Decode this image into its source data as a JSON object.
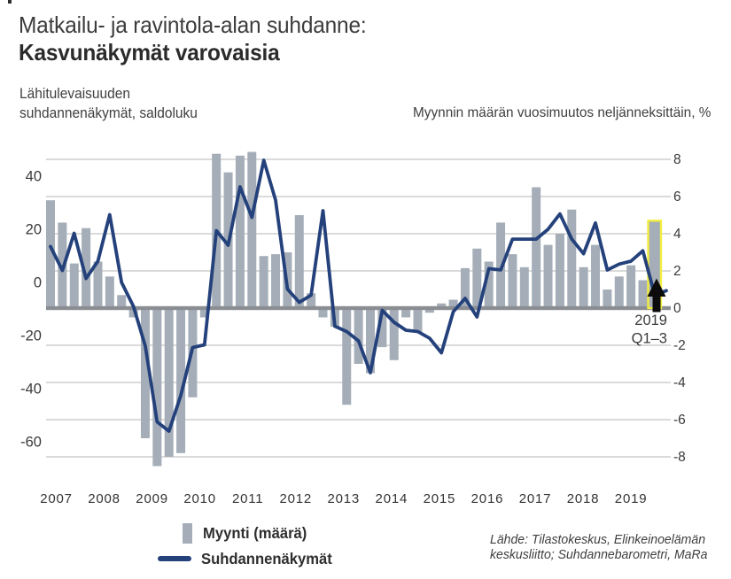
{
  "header": {
    "title_line1": "Matkailu- ja ravintola-alan suhdanne:",
    "title_line2": "Kasvunäkymät varovaisia"
  },
  "axis_notes": {
    "left_line1": "Lähitulevaisuuden",
    "left_line2": "suhdannenäkymät, saldoluku",
    "right": "Myynnin määrän vuosimuutos neljänneksittäin, %"
  },
  "chart_data": {
    "type": "bar+line",
    "x_start": "2007-Q1",
    "x_frequency": "quarterly",
    "year_labels": [
      "2007",
      "2008",
      "2009",
      "2010",
      "2011",
      "2012",
      "2013",
      "2014",
      "2015",
      "2016",
      "2017",
      "2018",
      "2019"
    ],
    "bar_series": {
      "name": "Myynti (määrä)",
      "axis": "right",
      "unit": "%",
      "values": [
        5.8,
        4.6,
        2.4,
        4.3,
        2.5,
        1.7,
        0.7,
        -0.5,
        -7.0,
        -8.5,
        -8.0,
        -7.8,
        -4.8,
        -0.5,
        8.3,
        7.3,
        8.2,
        8.4,
        2.8,
        2.9,
        3.0,
        5.0,
        0.8,
        -0.5,
        -1.0,
        -5.2,
        -3.0,
        -3.5,
        -2.1,
        -2.8,
        -0.5,
        -1.3,
        -0.25,
        0.25,
        0.45,
        2.15,
        3.2,
        2.5,
        4.6,
        2.9,
        2.2,
        6.5,
        3.4,
        4.0,
        5.3,
        2.2,
        3.4,
        1.0,
        1.7,
        2.3,
        1.5
      ]
    },
    "highlight_bar": {
      "label": "2019 Q1–3",
      "value": 4.7
    },
    "line_series": {
      "name": "Suhdannenäkymät",
      "axis": "left",
      "unit": "saldoluku",
      "values": [
        13.5,
        4.5,
        18.5,
        1.5,
        8,
        25.5,
        0,
        -9,
        -24,
        -52.5,
        -56,
        -42.5,
        -24.5,
        -23.5,
        19.5,
        14,
        36,
        24.5,
        46,
        31,
        -2.5,
        -7.5,
        -4.8,
        27,
        -16.5,
        -18.5,
        -22,
        -34,
        -10.5,
        -15,
        -18,
        -18.5,
        -21,
        -26.5,
        -11,
        -6,
        -13,
        5.2,
        4.7,
        16.3,
        16.3,
        16.3,
        20,
        25.8,
        16.3,
        10.8,
        22.4,
        4.7,
        6.9,
        8,
        11.9
      ],
      "latest_value": -4.8,
      "latest_tail": -3.1
    },
    "left_axis": {
      "ticks": [
        40,
        20,
        0,
        -20,
        -40,
        -60
      ]
    },
    "right_axis": {
      "ticks": [
        8,
        6,
        4,
        2,
        0,
        -2,
        -4,
        -6,
        -8
      ]
    },
    "annotation": {
      "line1": "2019",
      "line2": "Q1–3"
    },
    "grid": true,
    "legend_position": "bottom-left"
  },
  "legend": {
    "bar_label": "Myynti (määrä)",
    "line_label": "Suhdannenäkymät"
  },
  "source": {
    "line1": "Lähde: Tilastokeskus, Elinkeinoelämän",
    "line2": "keskusliitto; Suhdannebarometri, MaRa"
  },
  "colors": {
    "bar": "#a5aeb8",
    "highlight_outline": "#f3ee3e",
    "line": "#24417b",
    "gridline": "#c4c4c4",
    "zero_line": "#8a8e93",
    "text": "#3a3a3a",
    "arrow": "#0c0c0c"
  }
}
